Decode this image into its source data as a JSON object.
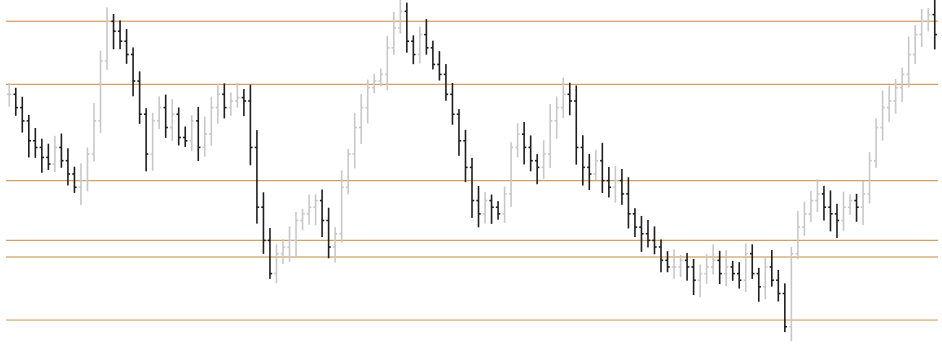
{
  "chart_data": {
    "type": "line",
    "style": "bar-ohlc",
    "title": "",
    "xlabel": "",
    "ylabel": "",
    "grid": false,
    "legend": "none",
    "ylim": [
      0,
      100
    ],
    "colors": {
      "background": "#ffffff",
      "up_bar": "#c8c8c8",
      "down_bar": "#1e1e1e",
      "level_line": "#d4a060"
    },
    "horizontal_levels": [
      96,
      77,
      48,
      30,
      25,
      6
    ],
    "series": [
      {
        "values": [
          74,
          70,
          66,
          60,
          58,
          55,
          53,
          58,
          54,
          50,
          46,
          48,
          56,
          66,
          84,
          96,
          93,
          90,
          86,
          78,
          68,
          56,
          66,
          70,
          64,
          68,
          61,
          60,
          66,
          58,
          62,
          70,
          74,
          70,
          72,
          73,
          72,
          58,
          40,
          30,
          20,
          26,
          28,
          30,
          36,
          38,
          40,
          42,
          36,
          28,
          32,
          46,
          56,
          64,
          70,
          76,
          78,
          80,
          88,
          94,
          99,
          90,
          86,
          92,
          88,
          83,
          80,
          74,
          68,
          60,
          52,
          42,
          38,
          42,
          40,
          38,
          44,
          58,
          62,
          58,
          54,
          52,
          56,
          66,
          70,
          74,
          72,
          58,
          52,
          50,
          54,
          48,
          46,
          48,
          44,
          38,
          34,
          32,
          30,
          28,
          24,
          22,
          22,
          24,
          22,
          18,
          20,
          22,
          24,
          20,
          22,
          20,
          18,
          26,
          20,
          16,
          22,
          18,
          14,
          4,
          26,
          34,
          38,
          42,
          44,
          40,
          38,
          36,
          40,
          42,
          40,
          44,
          54,
          64,
          70,
          72,
          76,
          80,
          86,
          92,
          96,
          98,
          92
        ]
      }
    ]
  }
}
